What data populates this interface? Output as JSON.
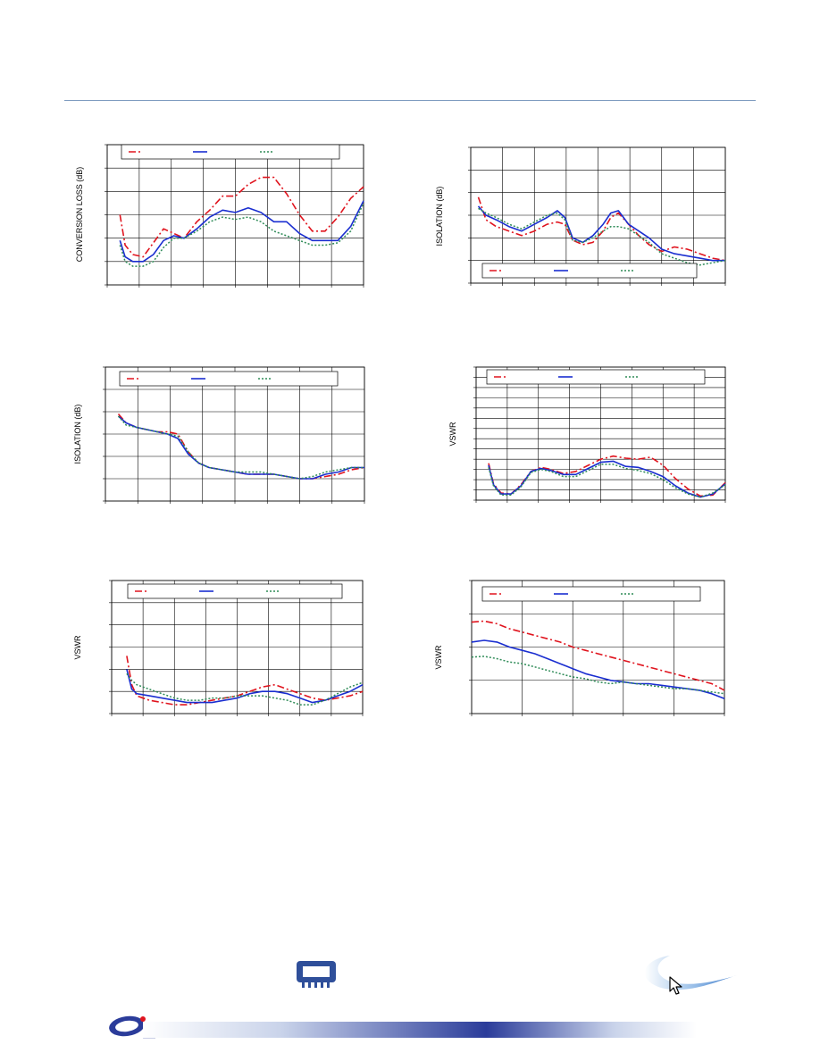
{
  "colors": {
    "red": "#e0141e",
    "blue": "#1a2ed0",
    "green": "#2e8b57",
    "grid": "#000000",
    "footer_blue": "#2b3c9a"
  },
  "icons": {
    "chip": "chip-icon",
    "logo": "company-logo",
    "swoosh": "swoosh-logo",
    "cursor": "cursor-icon"
  },
  "chart_data": [
    {
      "type": "line",
      "ylabel": "CONVERSION LOSS (dB)",
      "grid": true,
      "legend": "top",
      "xlim": [
        0,
        1
      ],
      "ylim": [
        0,
        6
      ],
      "series": [
        {
          "x": [
            0.05,
            0.07,
            0.1,
            0.14,
            0.18,
            0.22,
            0.26,
            0.3,
            0.35,
            0.4,
            0.45,
            0.5,
            0.55,
            0.6,
            0.65,
            0.7,
            0.75,
            0.8,
            0.85,
            0.9,
            0.95,
            1.0
          ],
          "values": [
            3.0,
            1.7,
            1.3,
            1.2,
            1.8,
            2.4,
            2.2,
            2.0,
            2.7,
            3.2,
            3.8,
            3.8,
            4.3,
            4.6,
            4.6,
            3.9,
            3.0,
            2.3,
            2.3,
            2.9,
            3.7,
            4.2
          ]
        },
        {
          "x": [
            0.05,
            0.07,
            0.1,
            0.14,
            0.18,
            0.22,
            0.26,
            0.3,
            0.35,
            0.4,
            0.45,
            0.5,
            0.55,
            0.6,
            0.65,
            0.7,
            0.75,
            0.8,
            0.85,
            0.9,
            0.95,
            1.0
          ],
          "values": [
            1.9,
            1.2,
            1.0,
            1.0,
            1.3,
            1.9,
            2.1,
            2.0,
            2.4,
            2.9,
            3.2,
            3.1,
            3.3,
            3.1,
            2.7,
            2.7,
            2.2,
            1.9,
            1.9,
            1.9,
            2.5,
            3.6
          ]
        },
        {
          "x": [
            0.05,
            0.07,
            0.1,
            0.14,
            0.18,
            0.22,
            0.26,
            0.3,
            0.35,
            0.4,
            0.45,
            0.5,
            0.55,
            0.6,
            0.65,
            0.7,
            0.75,
            0.8,
            0.85,
            0.9,
            0.95,
            1.0
          ],
          "values": [
            1.7,
            1.0,
            0.8,
            0.8,
            1.0,
            1.6,
            2.0,
            2.0,
            2.3,
            2.7,
            2.9,
            2.8,
            2.9,
            2.7,
            2.3,
            2.1,
            1.9,
            1.7,
            1.7,
            1.8,
            2.3,
            3.5
          ]
        }
      ]
    },
    {
      "type": "line",
      "ylabel": "ISOLATION (dB)",
      "grid": true,
      "legend": "bottom",
      "xlim": [
        0,
        1
      ],
      "ylim": [
        0,
        6
      ],
      "series": [
        {
          "x": [
            0.03,
            0.06,
            0.1,
            0.15,
            0.2,
            0.25,
            0.3,
            0.34,
            0.37,
            0.4,
            0.44,
            0.48,
            0.52,
            0.55,
            0.58,
            0.62,
            0.66,
            0.7,
            0.75,
            0.8,
            0.85,
            0.9,
            0.95,
            1.0
          ],
          "values": [
            3.8,
            2.8,
            2.5,
            2.3,
            2.1,
            2.3,
            2.6,
            2.7,
            2.6,
            1.9,
            1.7,
            1.8,
            2.3,
            2.9,
            3.1,
            2.6,
            2.1,
            1.7,
            1.4,
            1.6,
            1.5,
            1.3,
            1.1,
            1.0
          ]
        },
        {
          "x": [
            0.03,
            0.06,
            0.1,
            0.15,
            0.2,
            0.25,
            0.3,
            0.34,
            0.37,
            0.4,
            0.44,
            0.48,
            0.52,
            0.55,
            0.58,
            0.62,
            0.66,
            0.7,
            0.75,
            0.8,
            0.85,
            0.9,
            0.95,
            1.0
          ],
          "values": [
            3.4,
            3.0,
            2.8,
            2.5,
            2.3,
            2.6,
            2.9,
            3.2,
            2.9,
            2.0,
            1.8,
            2.1,
            2.6,
            3.1,
            3.2,
            2.6,
            2.3,
            2.0,
            1.5,
            1.3,
            1.2,
            1.1,
            1.0,
            1.0
          ]
        },
        {
          "x": [
            0.03,
            0.06,
            0.1,
            0.15,
            0.2,
            0.25,
            0.3,
            0.34,
            0.37,
            0.4,
            0.44,
            0.48,
            0.52,
            0.55,
            0.58,
            0.62,
            0.66,
            0.7,
            0.75,
            0.8,
            0.85,
            0.9,
            0.95,
            1.0
          ],
          "values": [
            3.3,
            3.1,
            2.9,
            2.6,
            2.4,
            2.7,
            3.0,
            3.1,
            2.8,
            1.9,
            1.8,
            2.0,
            2.3,
            2.5,
            2.5,
            2.4,
            2.1,
            1.8,
            1.3,
            1.1,
            0.9,
            0.8,
            0.9,
            1.0
          ]
        }
      ]
    },
    {
      "type": "line",
      "ylabel": "ISOLATION (dB)",
      "grid": true,
      "legend": "top",
      "xlim": [
        0,
        1
      ],
      "ylim": [
        0,
        6
      ],
      "series": [
        {
          "x": [
            0.05,
            0.08,
            0.12,
            0.16,
            0.2,
            0.24,
            0.28,
            0.32,
            0.36,
            0.4,
            0.45,
            0.5,
            0.55,
            0.6,
            0.65,
            0.7,
            0.75,
            0.8,
            0.85,
            0.9,
            0.95,
            1.0
          ],
          "values": [
            3.9,
            3.5,
            3.3,
            3.2,
            3.1,
            3.1,
            3.0,
            2.2,
            1.7,
            1.5,
            1.4,
            1.3,
            1.2,
            1.2,
            1.2,
            1.1,
            1.0,
            1.0,
            1.1,
            1.2,
            1.4,
            1.5
          ]
        },
        {
          "x": [
            0.05,
            0.08,
            0.12,
            0.16,
            0.2,
            0.24,
            0.28,
            0.32,
            0.36,
            0.4,
            0.45,
            0.5,
            0.55,
            0.6,
            0.65,
            0.7,
            0.75,
            0.8,
            0.85,
            0.9,
            0.95,
            1.0
          ],
          "values": [
            3.8,
            3.5,
            3.3,
            3.2,
            3.1,
            3.0,
            2.8,
            2.1,
            1.7,
            1.5,
            1.4,
            1.3,
            1.2,
            1.2,
            1.2,
            1.1,
            1.0,
            1.0,
            1.2,
            1.3,
            1.5,
            1.5
          ]
        },
        {
          "x": [
            0.05,
            0.08,
            0.12,
            0.16,
            0.2,
            0.24,
            0.28,
            0.32,
            0.36,
            0.4,
            0.45,
            0.5,
            0.55,
            0.6,
            0.65,
            0.7,
            0.75,
            0.8,
            0.85,
            0.9,
            0.95,
            1.0
          ],
          "values": [
            3.8,
            3.4,
            3.3,
            3.2,
            3.1,
            3.0,
            2.9,
            2.2,
            1.7,
            1.5,
            1.4,
            1.3,
            1.3,
            1.3,
            1.2,
            1.1,
            1.0,
            1.1,
            1.3,
            1.4,
            1.5,
            1.5
          ]
        }
      ]
    },
    {
      "type": "line",
      "ylabel": "VSWR",
      "grid": true,
      "legend": "top",
      "xlim": [
        0,
        1
      ],
      "ylim": [
        0,
        13
      ],
      "series": [
        {
          "x": [
            0.05,
            0.07,
            0.1,
            0.14,
            0.18,
            0.22,
            0.26,
            0.3,
            0.35,
            0.4,
            0.45,
            0.5,
            0.55,
            0.6,
            0.65,
            0.7,
            0.75,
            0.8,
            0.85,
            0.9,
            0.95,
            1.0
          ],
          "values": [
            3.6,
            1.6,
            0.7,
            0.6,
            1.5,
            2.8,
            3.2,
            3.0,
            2.6,
            2.8,
            3.4,
            4.0,
            4.3,
            4.1,
            4.0,
            4.2,
            3.4,
            2.1,
            1.1,
            0.4,
            0.5,
            1.7
          ]
        },
        {
          "x": [
            0.05,
            0.07,
            0.1,
            0.14,
            0.18,
            0.22,
            0.26,
            0.3,
            0.35,
            0.4,
            0.45,
            0.5,
            0.55,
            0.6,
            0.65,
            0.7,
            0.75,
            0.8,
            0.85,
            0.9,
            0.95,
            1.0
          ],
          "values": [
            3.4,
            1.5,
            0.6,
            0.6,
            1.4,
            2.8,
            3.1,
            2.9,
            2.5,
            2.5,
            3.1,
            3.7,
            3.8,
            3.3,
            3.2,
            2.8,
            2.3,
            1.4,
            0.7,
            0.3,
            0.6,
            1.6
          ]
        },
        {
          "x": [
            0.05,
            0.07,
            0.1,
            0.14,
            0.18,
            0.22,
            0.26,
            0.3,
            0.35,
            0.4,
            0.45,
            0.5,
            0.55,
            0.6,
            0.65,
            0.7,
            0.75,
            0.8,
            0.85,
            0.9,
            0.95,
            1.0
          ],
          "values": [
            3.2,
            1.4,
            0.5,
            0.5,
            1.3,
            2.7,
            3.0,
            2.8,
            2.3,
            2.3,
            2.9,
            3.5,
            3.5,
            3.1,
            2.9,
            2.6,
            2.0,
            1.2,
            0.6,
            0.3,
            0.7,
            1.5
          ]
        }
      ]
    },
    {
      "type": "line",
      "ylabel": "VSWR",
      "grid": true,
      "legend": "top",
      "xlim": [
        0,
        1
      ],
      "ylim": [
        0,
        6
      ],
      "series": [
        {
          "x": [
            0.06,
            0.08,
            0.1,
            0.15,
            0.2,
            0.25,
            0.3,
            0.35,
            0.4,
            0.45,
            0.5,
            0.55,
            0.6,
            0.65,
            0.7,
            0.75,
            0.8,
            0.85,
            0.9,
            0.95,
            1.0
          ],
          "values": [
            2.6,
            1.3,
            0.8,
            0.6,
            0.5,
            0.4,
            0.4,
            0.5,
            0.6,
            0.7,
            0.8,
            1.0,
            1.2,
            1.3,
            1.1,
            0.9,
            0.7,
            0.6,
            0.7,
            0.8,
            1.0
          ]
        },
        {
          "x": [
            0.06,
            0.08,
            0.1,
            0.15,
            0.2,
            0.25,
            0.3,
            0.35,
            0.4,
            0.45,
            0.5,
            0.55,
            0.6,
            0.65,
            0.7,
            0.75,
            0.8,
            0.85,
            0.9,
            0.95,
            1.0
          ],
          "values": [
            2.0,
            1.1,
            0.9,
            0.8,
            0.7,
            0.6,
            0.5,
            0.5,
            0.5,
            0.6,
            0.7,
            0.9,
            1.0,
            1.0,
            0.9,
            0.7,
            0.5,
            0.6,
            0.8,
            1.0,
            1.3
          ]
        },
        {
          "x": [
            0.06,
            0.08,
            0.1,
            0.15,
            0.2,
            0.25,
            0.3,
            0.35,
            0.4,
            0.45,
            0.5,
            0.55,
            0.6,
            0.65,
            0.7,
            0.75,
            0.8,
            0.85,
            0.9,
            0.95,
            1.0
          ],
          "values": [
            1.8,
            1.5,
            1.3,
            1.1,
            0.9,
            0.7,
            0.6,
            0.6,
            0.7,
            0.7,
            0.8,
            0.8,
            0.8,
            0.7,
            0.6,
            0.4,
            0.4,
            0.6,
            0.9,
            1.2,
            1.4
          ]
        }
      ]
    },
    {
      "type": "line",
      "ylabel": "VSWR",
      "grid": true,
      "legend": "top",
      "xlim": [
        0,
        1
      ],
      "ylim": [
        0,
        4
      ],
      "series": [
        {
          "x": [
            0,
            0.05,
            0.1,
            0.15,
            0.2,
            0.25,
            0.3,
            0.35,
            0.4,
            0.45,
            0.5,
            0.55,
            0.6,
            0.65,
            0.7,
            0.75,
            0.8,
            0.85,
            0.9,
            0.95,
            1.0
          ],
          "values": [
            2.75,
            2.78,
            2.7,
            2.55,
            2.45,
            2.35,
            2.25,
            2.15,
            2.0,
            1.9,
            1.8,
            1.7,
            1.6,
            1.5,
            1.4,
            1.3,
            1.2,
            1.1,
            1.0,
            0.9,
            0.7
          ]
        },
        {
          "x": [
            0,
            0.05,
            0.1,
            0.15,
            0.2,
            0.25,
            0.3,
            0.35,
            0.4,
            0.45,
            0.5,
            0.55,
            0.6,
            0.65,
            0.7,
            0.75,
            0.8,
            0.85,
            0.9,
            0.95,
            1.0
          ],
          "values": [
            2.15,
            2.2,
            2.15,
            2.0,
            1.9,
            1.8,
            1.65,
            1.5,
            1.35,
            1.2,
            1.1,
            1.0,
            0.95,
            0.9,
            0.9,
            0.85,
            0.8,
            0.75,
            0.7,
            0.6,
            0.45
          ]
        },
        {
          "x": [
            0,
            0.05,
            0.1,
            0.15,
            0.2,
            0.25,
            0.3,
            0.35,
            0.4,
            0.45,
            0.5,
            0.55,
            0.6,
            0.65,
            0.7,
            0.75,
            0.8,
            0.85,
            0.9,
            0.95,
            1.0
          ],
          "values": [
            1.7,
            1.72,
            1.65,
            1.55,
            1.5,
            1.4,
            1.3,
            1.2,
            1.1,
            1.05,
            0.95,
            0.9,
            0.95,
            0.9,
            0.85,
            0.8,
            0.75,
            0.75,
            0.7,
            0.65,
            0.6
          ]
        }
      ]
    }
  ]
}
